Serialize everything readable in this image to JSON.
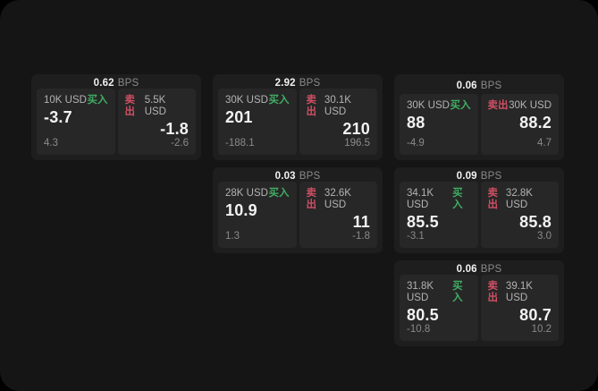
{
  "colors": {
    "buy_green": "#3fae63",
    "sell_red": "#cf4f63",
    "canvas_bg": "#151515",
    "card_bg": "#1e1e1e",
    "panel_bg": "#272727"
  },
  "bps_unit": "BPS",
  "buy_label": "买入",
  "sell_label": "卖出",
  "cards": [
    {
      "bps": "0.62",
      "buy": {
        "amount": "10K USD",
        "price": "-3.7",
        "delta": "4.3"
      },
      "sell": {
        "amount": "5.5K USD",
        "price": "-1.8",
        "delta": "-2.6"
      }
    },
    {
      "bps": "2.92",
      "buy": {
        "amount": "30K USD",
        "price": "201",
        "delta": "-188.1"
      },
      "sell": {
        "amount": "30.1K USD",
        "price": "210",
        "delta": "196.5"
      }
    },
    {
      "bps": "0.06",
      "buy": {
        "amount": "30K USD",
        "price": "88",
        "delta": "-4.9"
      },
      "sell": {
        "amount": "30K USD",
        "price": "88.2",
        "delta": "4.7"
      }
    },
    {
      "bps": "0.03",
      "buy": {
        "amount": "28K USD",
        "price": "10.9",
        "delta": "1.3"
      },
      "sell": {
        "amount": "32.6K USD",
        "price": "11",
        "delta": "-1.8"
      }
    },
    {
      "bps": "0.09",
      "buy": {
        "amount": "34.1K USD",
        "price": "85.5",
        "delta": "-3.1"
      },
      "sell": {
        "amount": "32.8K USD",
        "price": "85.8",
        "delta": "3.0"
      }
    },
    {
      "bps": "0.06",
      "buy": {
        "amount": "31.8K USD",
        "price": "80.5",
        "delta": "-10.8"
      },
      "sell": {
        "amount": "39.1K USD",
        "price": "80.7",
        "delta": "10.2"
      }
    }
  ]
}
